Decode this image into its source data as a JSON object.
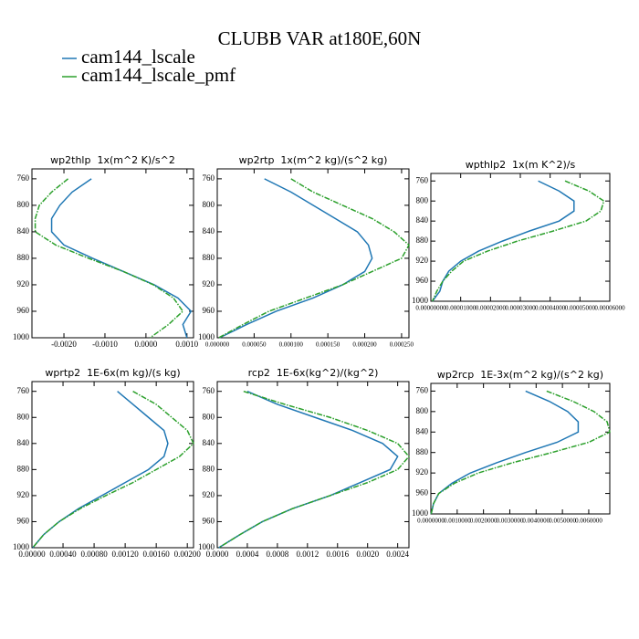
{
  "title": "CLUBB VAR at180E,60N",
  "legend": [
    {
      "name": "cam144_lscale",
      "color": "#1f77b4"
    },
    {
      "name": "cam144_lscale_pmf",
      "color": "#2ca02c"
    }
  ],
  "chart_data": [
    {
      "type": "line",
      "title": "wp2thlp  1x(m^2 K)/s^2",
      "y": [
        760,
        780,
        800,
        820,
        840,
        860,
        880,
        900,
        920,
        940,
        960,
        980,
        1000
      ],
      "series": [
        {
          "color": "#1f77b4",
          "values": [
            -0.00133,
            -0.0018,
            -0.0021,
            -0.0023,
            -0.0023,
            -0.002,
            -0.0013,
            -0.00055,
            0.0002,
            0.00078,
            0.0011,
            0.0009,
            0.001
          ]
        },
        {
          "color": "#2ca02c",
          "values": [
            -0.0019,
            -0.0023,
            -0.0026,
            -0.0027,
            -0.0027,
            -0.0022,
            -0.0014,
            -0.00055,
            0.00018,
            0.00067,
            0.0009,
            0.00055,
            0.0001
          ]
        }
      ],
      "xlim": [
        -0.00278,
        0.00116
      ],
      "ylim": [
        745,
        1000
      ],
      "yreverse": true,
      "xticks": [
        {
          "value": -0.002,
          "label": "-0.0020"
        },
        {
          "value": -0.001,
          "label": "-0.0010"
        },
        {
          "value": 0,
          "label": "0.0000"
        },
        {
          "value": 0.001,
          "label": "0.0010"
        }
      ],
      "yticks": [
        760,
        800,
        840,
        880,
        920,
        960,
        1000
      ]
    },
    {
      "type": "line",
      "title": "wp2rtp  1x(m^2 kg)/(s^2 kg)",
      "y": [
        760,
        780,
        800,
        820,
        840,
        860,
        880,
        900,
        920,
        940,
        960,
        980,
        1000
      ],
      "series": [
        {
          "color": "#1f77b4",
          "values": [
            6.4e-05,
            0.0001,
            0.00013,
            0.00016,
            0.00019,
            0.000205,
            0.00021,
            0.0002,
            0.00017,
            0.00013,
            8e-05,
            4e-05,
            3e-06
          ]
        },
        {
          "color": "#2ca02c",
          "values": [
            0.0001,
            0.00013,
            0.00017,
            0.00021,
            0.00024,
            0.00026,
            0.00025,
            0.00021,
            0.00017,
            0.00012,
            7e-05,
            3.5e-05,
            2e-06
          ]
        }
      ],
      "xlim": [
        0,
        0.00026
      ],
      "ylim": [
        745,
        1000
      ],
      "yreverse": true,
      "xticks": [
        {
          "value": 0,
          "label": "0.000000"
        },
        {
          "value": 5e-05,
          "label": "0.000050"
        },
        {
          "value": 0.0001,
          "label": "0.000100"
        },
        {
          "value": 0.00015,
          "label": "0.000150"
        },
        {
          "value": 0.0002,
          "label": "0.000200"
        },
        {
          "value": 0.00025,
          "label": "0.000250"
        }
      ],
      "yticks": [
        760,
        800,
        840,
        880,
        920,
        960,
        1000
      ]
    },
    {
      "type": "line",
      "title": "wpthlp2  1x(m K^2)/s",
      "y": [
        760,
        780,
        800,
        820,
        840,
        860,
        880,
        900,
        920,
        940,
        960,
        980,
        1000
      ],
      "series": [
        {
          "color": "#1f77b4",
          "values": [
            3.6e-05,
            4.3e-05,
            4.8e-05,
            4.8e-05,
            4.3e-05,
            3.3e-05,
            2.4e-05,
            1.6e-05,
            1e-05,
            6e-06,
            4e-06,
            3e-06,
            5e-07
          ]
        },
        {
          "color": "#2ca02c",
          "values": [
            4.5e-05,
            5.3e-05,
            5.8e-05,
            5.7e-05,
            5.2e-05,
            4.1e-05,
            2.9e-05,
            1.9e-05,
            1.1e-05,
            7e-06,
            4e-06,
            2e-06,
            5e-07
          ]
        }
      ],
      "xlim": [
        0,
        6e-05
      ],
      "ylim": [
        745,
        1000
      ],
      "yreverse": true,
      "xticks": [
        {
          "value": 0,
          "label": "0.00000000"
        },
        {
          "value": 1e-05,
          "label": "0.00001000"
        },
        {
          "value": 2e-05,
          "label": "0.00002000"
        },
        {
          "value": 3e-05,
          "label": "0.00003000"
        },
        {
          "value": 4e-05,
          "label": "0.00004000"
        },
        {
          "value": 5e-05,
          "label": "0.00005000"
        },
        {
          "value": 6e-05,
          "label": "0.00006000"
        }
      ],
      "yticks": [
        760,
        800,
        840,
        880,
        920,
        960,
        1000
      ]
    },
    {
      "type": "line",
      "title": "wprtp2  1E-6x(m kg)/(s kg)",
      "y": [
        760,
        780,
        800,
        820,
        840,
        860,
        880,
        900,
        920,
        940,
        960,
        980,
        1000
      ],
      "series": [
        {
          "color": "#1f77b4",
          "values": [
            0.0011,
            0.0013,
            0.0015,
            0.0017,
            0.00175,
            0.0017,
            0.0015,
            0.0012,
            0.0009,
            0.0006,
            0.00035,
            0.00015,
            1e-05
          ]
        },
        {
          "color": "#2ca02c",
          "values": [
            0.0013,
            0.0016,
            0.0018,
            0.002,
            0.00208,
            0.0019,
            0.0016,
            0.0013,
            0.00095,
            0.00062,
            0.00035,
            0.00015,
            1e-05
          ]
        }
      ],
      "xlim": [
        0,
        0.00208
      ],
      "ylim": [
        745,
        1000
      ],
      "yreverse": true,
      "xticks": [
        {
          "value": 0,
          "label": "0.00000"
        },
        {
          "value": 0.0004,
          "label": "0.00040"
        },
        {
          "value": 0.0008,
          "label": "0.00080"
        },
        {
          "value": 0.0012,
          "label": "0.00120"
        },
        {
          "value": 0.0016,
          "label": "0.00160"
        },
        {
          "value": 0.002,
          "label": "0.00200"
        }
      ],
      "yticks": [
        760,
        800,
        840,
        880,
        920,
        960,
        1000
      ]
    },
    {
      "type": "line",
      "title": "rcp2  1E-6x(kg^2)/(kg^2)",
      "y": [
        760,
        780,
        800,
        820,
        840,
        860,
        880,
        900,
        920,
        940,
        960,
        980,
        1000
      ],
      "series": [
        {
          "color": "#1f77b4",
          "values": [
            0.0004,
            0.0008,
            0.0013,
            0.0018,
            0.0022,
            0.0024,
            0.0023,
            0.0019,
            0.0015,
            0.001,
            0.0006,
            0.0003,
            2e-05
          ]
        },
        {
          "color": "#2ca02c",
          "values": [
            0.00035,
            0.0009,
            0.0015,
            0.002,
            0.0024,
            0.00255,
            0.0024,
            0.002,
            0.0015,
            0.001,
            0.0006,
            0.0003,
            2e-05
          ]
        }
      ],
      "xlim": [
        0,
        0.00255
      ],
      "ylim": [
        745,
        1000
      ],
      "yreverse": true,
      "xticks": [
        {
          "value": 0,
          "label": "0.0000"
        },
        {
          "value": 0.0004,
          "label": "0.0004"
        },
        {
          "value": 0.0008,
          "label": "0.0008"
        },
        {
          "value": 0.0012,
          "label": "0.0012"
        },
        {
          "value": 0.0016,
          "label": "0.0016"
        },
        {
          "value": 0.002,
          "label": "0.0020"
        },
        {
          "value": 0.0024,
          "label": "0.0024"
        }
      ],
      "yticks": [
        760,
        800,
        840,
        880,
        920,
        960,
        1000
      ]
    },
    {
      "type": "line",
      "title": "wp2rcp  1E-3x(m^2 kg)/(s^2 kg)",
      "y": [
        760,
        780,
        800,
        820,
        840,
        860,
        880,
        900,
        920,
        940,
        960,
        980,
        1000
      ],
      "series": [
        {
          "color": "#1f77b4",
          "values": [
            0.0036,
            0.0045,
            0.0052,
            0.0056,
            0.0056,
            0.0048,
            0.0036,
            0.0025,
            0.0015,
            0.0008,
            0.0003,
            0.0001,
            1e-05
          ]
        },
        {
          "color": "#2ca02c",
          "values": [
            0.0044,
            0.0054,
            0.0062,
            0.0067,
            0.0068,
            0.006,
            0.0046,
            0.0031,
            0.0018,
            0.0009,
            0.0003,
            0.0001,
            1e-05
          ]
        }
      ],
      "xlim": [
        0,
        0.0068
      ],
      "ylim": [
        745,
        1000
      ],
      "yreverse": true,
      "xticks": [
        {
          "value": 0,
          "label": "0.0000000"
        },
        {
          "value": 0.001,
          "label": "0.0010000"
        },
        {
          "value": 0.002,
          "label": "0.0020000"
        },
        {
          "value": 0.003,
          "label": "0.0030000"
        },
        {
          "value": 0.004,
          "label": "0.0040000"
        },
        {
          "value": 0.005,
          "label": "0.0050000"
        },
        {
          "value": 0.006,
          "label": "0.0060000"
        }
      ],
      "yticks": [
        760,
        800,
        840,
        880,
        920,
        960,
        1000
      ]
    }
  ]
}
